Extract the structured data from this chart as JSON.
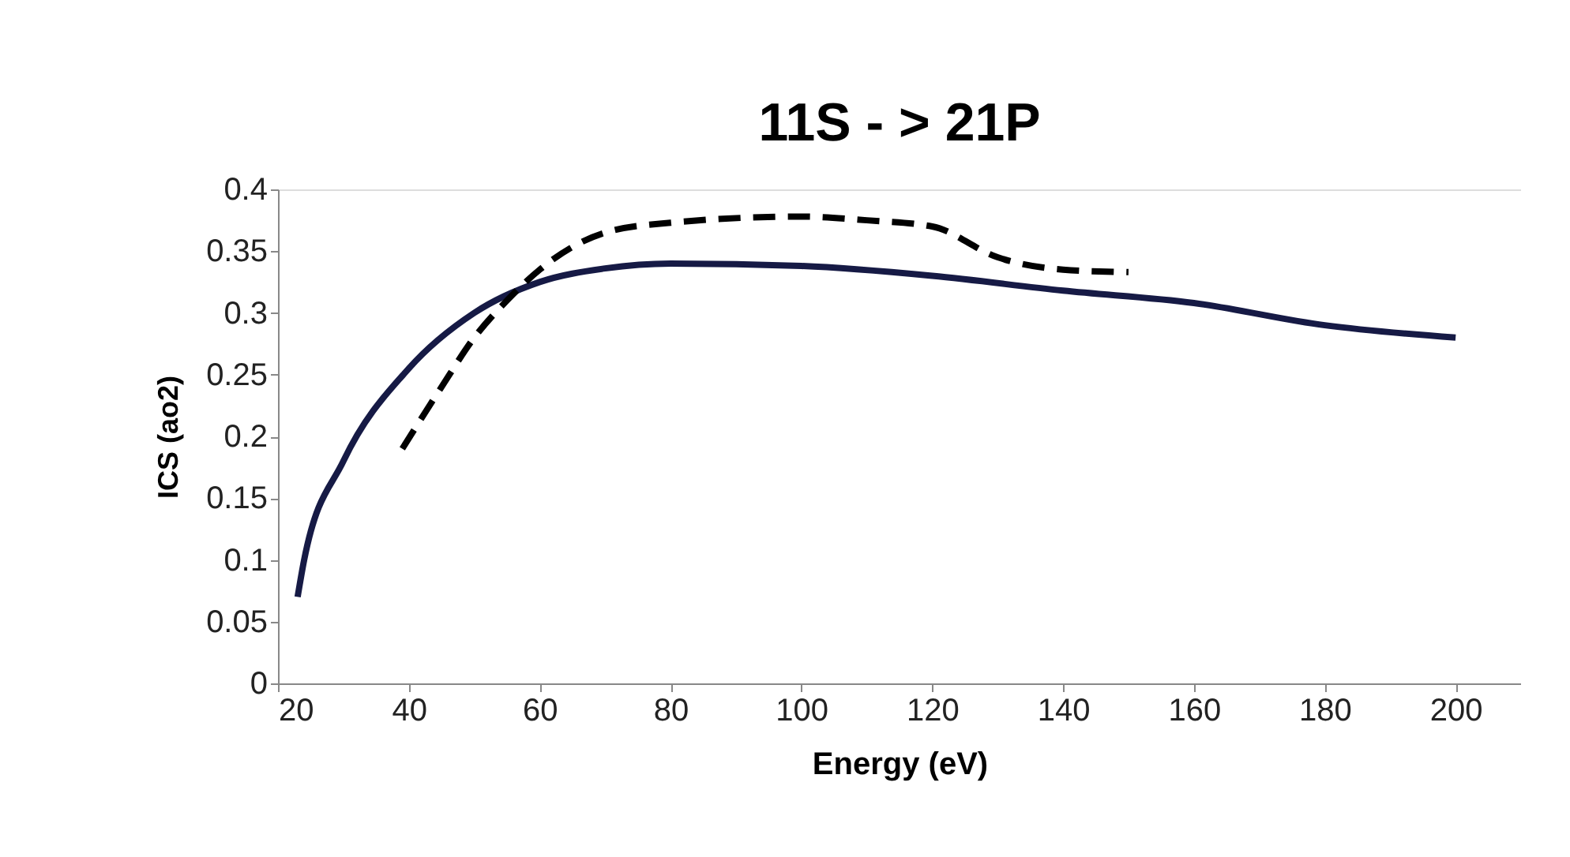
{
  "chart_data": {
    "type": "line",
    "title": "11S - > 21P",
    "xlabel": "Energy (eV)",
    "ylabel": "ICS (ao2)",
    "xlim": [
      20,
      210
    ],
    "xticks": [
      20,
      40,
      60,
      80,
      100,
      120,
      140,
      160,
      180,
      200
    ],
    "ylim": [
      0,
      0.4
    ],
    "yticks": [
      0,
      0.05,
      0.1,
      0.15,
      0.2,
      0.25,
      0.3,
      0.35,
      0.4
    ],
    "grid": false,
    "series": [
      {
        "color": "#161a45",
        "line_style": "solid",
        "x": [
          23,
          24,
          30,
          40,
          50,
          60,
          70,
          80,
          100,
          120,
          140,
          160,
          180,
          200
        ],
        "values": [
          0.07,
          0.1,
          0.18,
          0.255,
          0.3,
          0.325,
          0.336,
          0.34,
          0.338,
          0.33,
          0.318,
          0.308,
          0.29,
          0.28
        ]
      },
      {
        "color": "#000000",
        "line_style": "dashed",
        "x": [
          39,
          45,
          50,
          55,
          60,
          70,
          80,
          100,
          110,
          120,
          130,
          140,
          150
        ],
        "values": [
          0.19,
          0.24,
          0.28,
          0.31,
          0.335,
          0.365,
          0.373,
          0.378,
          0.375,
          0.37,
          0.345,
          0.335,
          0.333
        ]
      }
    ]
  }
}
